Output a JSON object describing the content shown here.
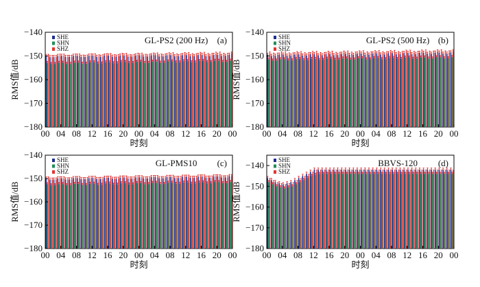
{
  "colors": {
    "SHE": "#1f2f8f",
    "SHN": "#1e8f57",
    "SHZ": "#e2362f",
    "cap": "#d92b2b"
  },
  "chart_data": [
    {
      "type": "bar",
      "title": "GL-PS2 (200 Hz)",
      "panel_label": "(a)",
      "xlabel": "时刻",
      "ylabel": "RMS值/dB",
      "ylim": [
        -180,
        -140
      ],
      "yticks": [
        "−140",
        "−150",
        "−160",
        "−170",
        "−180"
      ],
      "yticks_values": [
        -140,
        -150,
        -160,
        -170,
        -180
      ],
      "xtick_labels": [
        "00",
        "04",
        "08",
        "12",
        "16",
        "20",
        "00",
        "04",
        "08",
        "12",
        "16",
        "20",
        "00"
      ],
      "legend": [
        "SHE",
        "SHN",
        "SHZ"
      ],
      "legend_position": "top-left",
      "n_hours": 48,
      "series": [
        {
          "name": "SHE",
          "start": -150.0,
          "end": -149.5,
          "dip": 0.5
        },
        {
          "name": "SHN",
          "start": -153.0,
          "end": -152.0,
          "dip": 0.5
        },
        {
          "name": "SHZ",
          "start": -150.0,
          "end": -149.0,
          "dip": 0.5
        }
      ]
    },
    {
      "type": "bar",
      "title": "GL-PS2 (500 Hz)",
      "panel_label": "(b)",
      "xlabel": "时刻",
      "ylabel": "RMS值/dB",
      "ylim": [
        -180,
        -140
      ],
      "yticks": [
        "−140",
        "−150",
        "−160",
        "−170",
        "−180"
      ],
      "yticks_values": [
        -140,
        -150,
        -160,
        -170,
        -180
      ],
      "xtick_labels": [
        "00",
        "04",
        "08",
        "12",
        "16",
        "20",
        "00",
        "04",
        "08",
        "12",
        "16",
        "20",
        "00"
      ],
      "legend": [
        "SHE",
        "SHN",
        "SHZ"
      ],
      "legend_position": "top-left",
      "n_hours": 48,
      "series": [
        {
          "name": "SHE",
          "start": -149.5,
          "end": -148.5,
          "dip": 0.5
        },
        {
          "name": "SHN",
          "start": -151.5,
          "end": -150.5,
          "dip": 0.5
        },
        {
          "name": "SHZ",
          "start": -149.0,
          "end": -148.0,
          "dip": 0.5
        }
      ]
    },
    {
      "type": "bar",
      "title": "GL-PMS10",
      "panel_label": "(c)",
      "xlabel": "时刻",
      "ylabel": "RMS值/dB",
      "ylim": [
        -180,
        -140
      ],
      "yticks": [
        "−140",
        "−150",
        "−160",
        "−170",
        "−180"
      ],
      "yticks_values": [
        -140,
        -150,
        -160,
        -170,
        -180
      ],
      "xtick_labels": [
        "00",
        "04",
        "08",
        "12",
        "16",
        "20",
        "00",
        "04",
        "08",
        "12",
        "16",
        "20",
        "00"
      ],
      "legend": [
        "SHE",
        "SHN",
        "SHZ"
      ],
      "legend_position": "top-left",
      "n_hours": 48,
      "series": [
        {
          "name": "SHE",
          "start": -150.0,
          "end": -149.0,
          "dip": 0.5
        },
        {
          "name": "SHN",
          "start": -152.5,
          "end": -151.5,
          "dip": 0.5
        },
        {
          "name": "SHZ",
          "start": -150.0,
          "end": -149.0,
          "dip": 0.5
        }
      ]
    },
    {
      "type": "bar",
      "title": "BBVS-120",
      "panel_label": "(d)",
      "xlabel": "时刻",
      "ylabel": "RMS值/dB",
      "ylim": [
        -180,
        -135
      ],
      "yticks": [
        "−140",
        "−150",
        "−160",
        "−170",
        "−180"
      ],
      "yticks_values": [
        -140,
        -150,
        -160,
        -170,
        -180
      ],
      "xtick_labels": [
        "00",
        "04",
        "08",
        "12",
        "16",
        "20",
        "00",
        "04",
        "08",
        "12",
        "16",
        "20",
        "00"
      ],
      "legend": [
        "SHE",
        "SHN",
        "SHZ"
      ],
      "legend_position": "top-left",
      "n_hours": 48,
      "series": [
        {
          "name": "SHE",
          "values": [
            -146,
            -147,
            -148,
            -148.5,
            -149,
            -148.5,
            -148,
            -147,
            -146,
            -145,
            -144,
            -143,
            -142,
            -142,
            -142,
            -142,
            -142,
            -142,
            -142,
            -142,
            -142,
            -142,
            -142,
            -142,
            -142,
            -142,
            -142,
            -142,
            -142,
            -142,
            -142,
            -142,
            -142,
            -142,
            -142,
            -142,
            -142,
            -142,
            -142,
            -142,
            -142,
            -142,
            -142,
            -142,
            -142,
            -142,
            -142,
            -142
          ]
        },
        {
          "name": "SHN",
          "values": [
            -148,
            -149,
            -150,
            -150.5,
            -151,
            -150.5,
            -150,
            -149,
            -148,
            -147,
            -146,
            -145,
            -144.5,
            -144,
            -144,
            -144,
            -144,
            -144,
            -144,
            -144,
            -144,
            -144,
            -144,
            -144,
            -144,
            -144,
            -144,
            -144,
            -144,
            -144,
            -144,
            -144,
            -144,
            -144,
            -144,
            -144,
            -144,
            -144,
            -144,
            -144,
            -144,
            -144,
            -144,
            -144,
            -144,
            -144,
            -144,
            -144
          ]
        },
        {
          "name": "SHZ",
          "values": [
            -147,
            -148,
            -149,
            -149.5,
            -150,
            -149.5,
            -149,
            -148,
            -147,
            -146,
            -145,
            -144,
            -143,
            -143,
            -143,
            -143,
            -143,
            -143,
            -143,
            -143,
            -143,
            -143,
            -143,
            -143,
            -143,
            -143,
            -143,
            -143,
            -143,
            -143,
            -143,
            -143,
            -143,
            -143,
            -143,
            -143,
            -143,
            -143,
            -143,
            -143,
            -143,
            -143,
            -143,
            -143,
            -143,
            -143,
            -143,
            -143
          ]
        }
      ]
    }
  ]
}
